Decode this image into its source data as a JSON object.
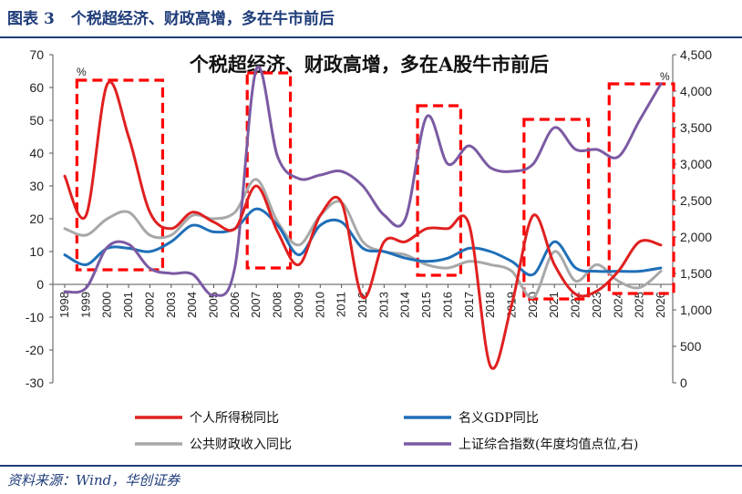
{
  "figure": {
    "label": "图表",
    "number": "3",
    "title": "个税超经济、财政高增，多在牛市前后"
  },
  "source": "资料来源：Wind，华创证券",
  "chart_data": {
    "type": "line",
    "title": "个税超经济、财政高增，多在A股牛市前后",
    "y_left": {
      "range": [
        -30,
        70
      ],
      "ticks": [
        -30,
        -20,
        -10,
        0,
        10,
        20,
        30,
        40,
        50,
        60,
        70
      ],
      "unit": "%"
    },
    "y_right": {
      "range": [
        0,
        4500
      ],
      "ticks": [
        0,
        500,
        1000,
        1500,
        2000,
        2500,
        3000,
        3500,
        4000,
        4500
      ],
      "tick_labels": [
        "0",
        "500",
        "1,000",
        "1,500",
        "2,000",
        "2,500",
        "3,000",
        "3,500",
        "4,000",
        "4,500"
      ],
      "unit": "%"
    },
    "x": [
      "1998",
      "1999",
      "2000",
      "2001",
      "2002",
      "2003",
      "2004",
      "2005",
      "2006",
      "2007",
      "2008",
      "2009",
      "2010",
      "2011",
      "2012",
      "2013",
      "2014",
      "2015",
      "2016",
      "2017",
      "2018",
      "2019",
      "2020",
      "2021",
      "2022",
      "2023",
      "2024",
      "2025",
      "2026"
    ],
    "series": [
      {
        "name": "个人所得税同比",
        "color": "#e02020",
        "axis": "left",
        "values": [
          33,
          21,
          61,
          45,
          22,
          17,
          22,
          19,
          17,
          30,
          16,
          6,
          21,
          25,
          -4,
          13,
          13,
          17,
          17,
          18,
          -25,
          -6,
          21,
          6,
          -3,
          -2,
          4,
          13,
          12
        ]
      },
      {
        "name": "名义GDP同比",
        "color": "#1f6fb8",
        "axis": "left",
        "values": [
          9,
          6,
          11,
          11,
          10,
          13,
          18,
          16,
          17,
          23,
          18,
          9,
          18,
          19,
          11,
          10,
          8,
          7,
          8,
          11,
          10,
          7,
          3,
          13,
          5,
          4,
          4,
          4,
          5
        ]
      },
      {
        "name": "公共财政收入同比",
        "color": "#a8a8a8",
        "axis": "left",
        "values": [
          17,
          15,
          20,
          22,
          15,
          15,
          21,
          20,
          22,
          32,
          19,
          12,
          21,
          25,
          13,
          10,
          9,
          6,
          5,
          7,
          6,
          4,
          -4,
          10,
          1,
          6,
          1,
          -1,
          4
        ]
      },
      {
        "name": "上证综合指数(年度均值点位,右)",
        "color": "#7b5aa3",
        "axis": "right",
        "values": [
          1250,
          1300,
          1860,
          1900,
          1570,
          1500,
          1490,
          1200,
          1600,
          4300,
          3100,
          2800,
          2850,
          2900,
          2700,
          2300,
          2250,
          3650,
          3000,
          3250,
          2950,
          2900,
          3000,
          3500,
          3200,
          3200,
          3100,
          3600,
          4100
        ]
      }
    ],
    "highlights": [
      {
        "from": "1999",
        "to": "2002"
      },
      {
        "from": "2007",
        "to": "2008"
      },
      {
        "from": "2015",
        "to": "2016"
      },
      {
        "from": "2020",
        "to": "2022"
      },
      {
        "from": "2024",
        "to": "2026"
      }
    ],
    "legend_position": "bottom",
    "grid": false
  }
}
